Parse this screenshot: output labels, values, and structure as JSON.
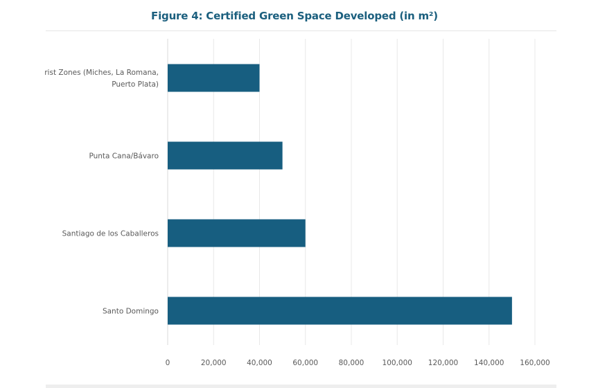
{
  "chart_data": {
    "type": "bar",
    "orientation": "horizontal",
    "title": "Figure 4: Certified Green Space Developed (in m²)",
    "xlabel": "",
    "ylabel": "",
    "categories": [
      "Tourist Zones (Miches, La Romana, Puerto Plata)",
      "Punta Cana/Bávaro",
      "Santiago de los Caballeros",
      "Santo Domingo"
    ],
    "category_lines": [
      [
        "rist Zones (Miches, La Romana,",
        "Puerto Plata)"
      ],
      [
        "Punta Cana/Bávaro"
      ],
      [
        "Santiago de los Caballeros"
      ],
      [
        "Santo Domingo"
      ]
    ],
    "series": [
      {
        "name": "Certified Green Space (m²)",
        "values": [
          40000,
          50000,
          60000,
          150000
        ],
        "color": "#175e80"
      }
    ],
    "xlim": [
      0,
      160000
    ],
    "xticks": [
      0,
      20000,
      40000,
      60000,
      80000,
      100000,
      120000,
      140000,
      160000
    ],
    "xtick_labels": [
      "0",
      "20,000",
      "40,000",
      "60,000",
      "80,000",
      "100,000",
      "120,000",
      "140,000",
      "160,000"
    ],
    "grid": true,
    "legend": "none"
  }
}
